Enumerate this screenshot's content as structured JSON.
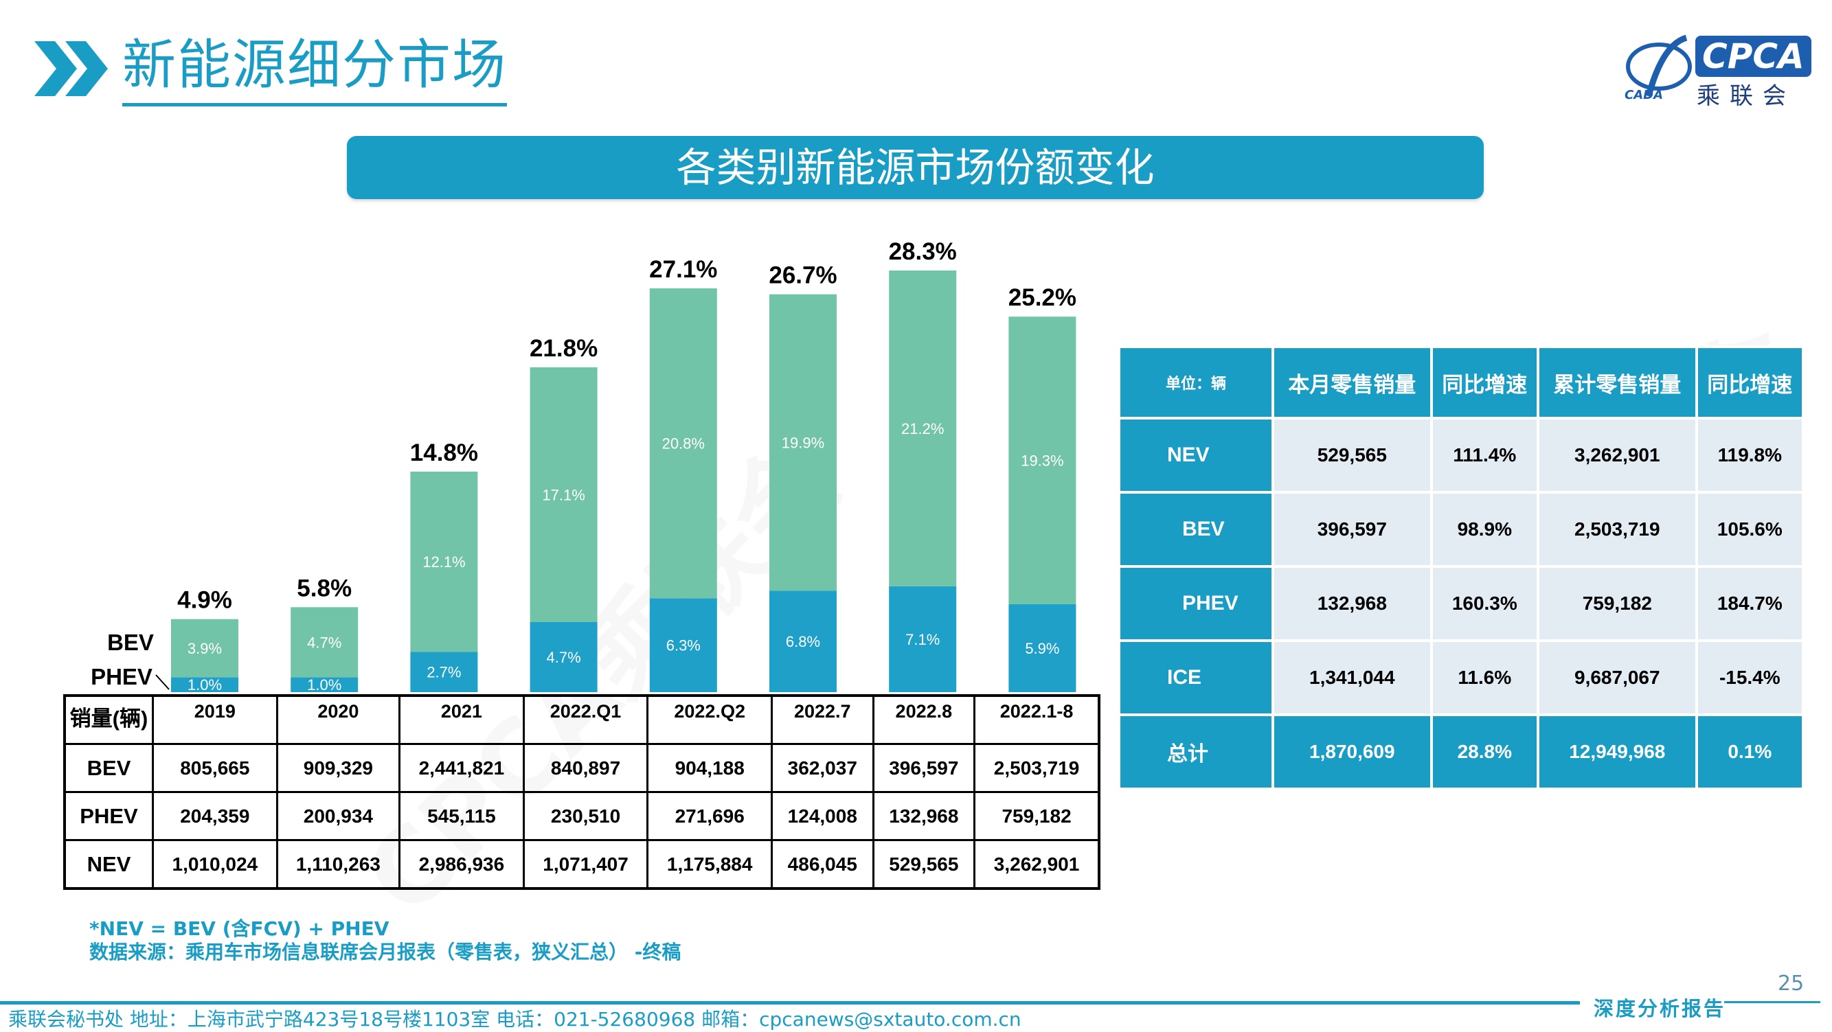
{
  "header": {
    "title": "新能源细分市场",
    "logo_text": "CPCA",
    "logo_sub": "乘联会",
    "logo_ext": "CADA"
  },
  "banner": {
    "text": "各类别新能源市场份额变化"
  },
  "colors": {
    "accent": "#1a9dc5",
    "phev": "#1ea0c8",
    "bev": "#72c4a8",
    "table_cell": "#e3ecf3"
  },
  "chart_data": {
    "type": "bar",
    "stacked": true,
    "categories": [
      "2019",
      "2020",
      "2021",
      "2022.Q1",
      "2022.Q2",
      "2022.7",
      "2022.8",
      "2022.1-8"
    ],
    "series": [
      {
        "name": "PHEV",
        "values": [
          1.0,
          1.0,
          2.7,
          4.7,
          6.3,
          6.8,
          7.1,
          5.9
        ],
        "labels": [
          "1.0%",
          "1.0%",
          "2.7%",
          "4.7%",
          "6.3%",
          "6.8%",
          "7.1%",
          "5.9%"
        ]
      },
      {
        "name": "BEV",
        "values": [
          3.9,
          4.7,
          12.1,
          17.1,
          20.8,
          19.9,
          21.2,
          19.3
        ],
        "labels": [
          "3.9%",
          "4.7%",
          "12.1%",
          "17.1%",
          "20.8%",
          "19.9%",
          "21.2%",
          "19.3%"
        ]
      }
    ],
    "totals": [
      4.9,
      5.8,
      14.8,
      21.8,
      27.1,
      26.7,
      28.3,
      25.2
    ],
    "total_labels": [
      "4.9%",
      "5.8%",
      "14.8%",
      "21.8%",
      "27.1%",
      "26.7%",
      "28.3%",
      "25.2%"
    ],
    "legend_labels": {
      "bev": "BEV",
      "phev": "PHEV"
    },
    "ylim": [
      0,
      30
    ],
    "grid": false
  },
  "left_table": {
    "corner": "销量(辆)",
    "headers": [
      "2019",
      "2020",
      "2021",
      "2022.Q1",
      "2022.Q2",
      "2022.7",
      "2022.8",
      "2022.1-8"
    ],
    "rows": [
      {
        "label": "BEV",
        "values": [
          "805,665",
          "909,329",
          "2,441,821",
          "840,897",
          "904,188",
          "362,037",
          "396,597",
          "2,503,719"
        ]
      },
      {
        "label": "PHEV",
        "values": [
          "204,359",
          "200,934",
          "545,115",
          "230,510",
          "271,696",
          "124,008",
          "132,968",
          "759,182"
        ]
      },
      {
        "label": "NEV",
        "values": [
          "1,010,024",
          "1,110,263",
          "2,986,936",
          "1,071,407",
          "1,175,884",
          "486,045",
          "529,565",
          "3,262,901"
        ]
      }
    ]
  },
  "right_table": {
    "headers": [
      "单位：辆",
      "本月零售销量",
      "同比增速",
      "累计零售销量",
      "同比增速"
    ],
    "rows": [
      {
        "label": "NEV",
        "values": [
          "529,565",
          "111.4%",
          "3,262,901",
          "119.8%"
        ]
      },
      {
        "label": "BEV",
        "values": [
          "396,597",
          "98.9%",
          "2,503,719",
          "105.6%"
        ]
      },
      {
        "label": "PHEV",
        "values": [
          "132,968",
          "160.3%",
          "759,182",
          "184.7%"
        ]
      },
      {
        "label": "ICE",
        "values": [
          "1,341,044",
          "11.6%",
          "9,687,067",
          "-15.4%"
        ]
      },
      {
        "label": "总计",
        "values": [
          "1,870,609",
          "28.8%",
          "12,949,968",
          "0.1%"
        ]
      }
    ]
  },
  "notes": {
    "line1": "*NEV = BEV (含FCV) + PHEV",
    "line2": "数据来源：乘用车市场信息联席会月报表（零售表，狭义汇总） -终稿"
  },
  "page_number": "25",
  "footer": {
    "text": "乘联会秘书处   地址：上海市武宁路423号18号楼1103室   电话：021-52680968   邮箱：cpcanews@sxtauto.com.cn",
    "tag": "深度分析报告"
  },
  "watermark": "CPCA乘联会"
}
